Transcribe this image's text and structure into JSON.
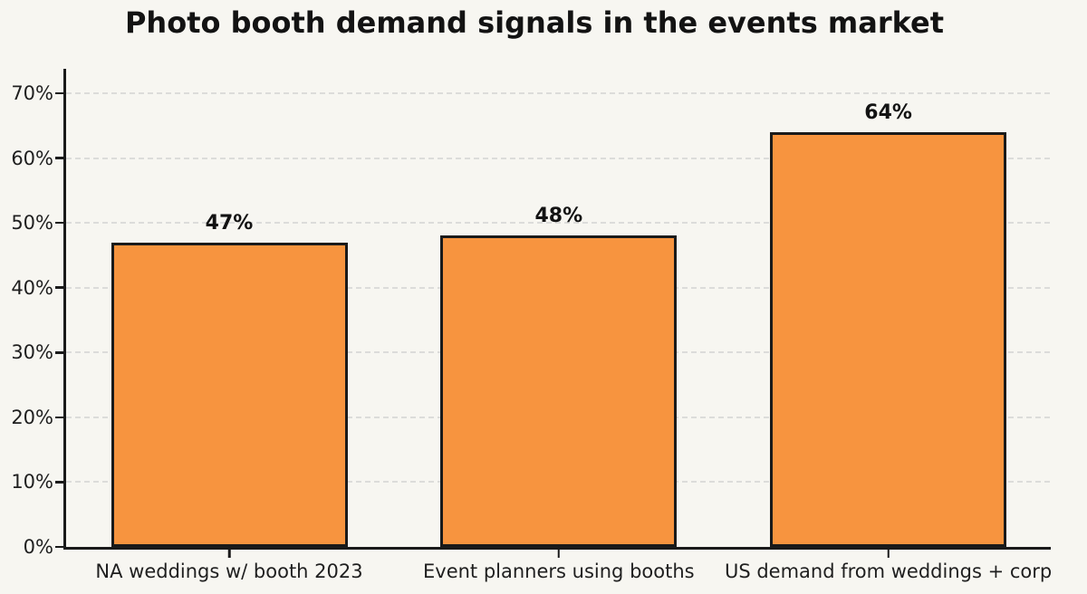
{
  "title": "Photo booth demand signals in the events market",
  "colors": {
    "background": "#f7f6f1",
    "bar_fill": "#f7943f",
    "bar_edge": "#1a1a1a",
    "gridline": "#dcdcda",
    "axis": "#1a1a1a",
    "text": "#131313"
  },
  "chart_data": {
    "type": "bar",
    "title": "Photo booth demand signals in the events market",
    "categories": [
      "NA weddings w/ booth 2023",
      "Event planners using booths",
      "US demand from weddings + corp"
    ],
    "values": [
      47,
      48,
      64
    ],
    "value_labels": [
      "47%",
      "48%",
      "64%"
    ],
    "xlabel": "",
    "ylabel": "",
    "ylim": [
      0,
      70
    ],
    "yticks": [
      0,
      10,
      20,
      30,
      40,
      50,
      60,
      70
    ],
    "ytick_labels": [
      "0%",
      "10%",
      "20%",
      "30%",
      "40%",
      "50%",
      "60%",
      "70%"
    ],
    "grid": true,
    "grid_style": "dashed",
    "legend": false
  }
}
